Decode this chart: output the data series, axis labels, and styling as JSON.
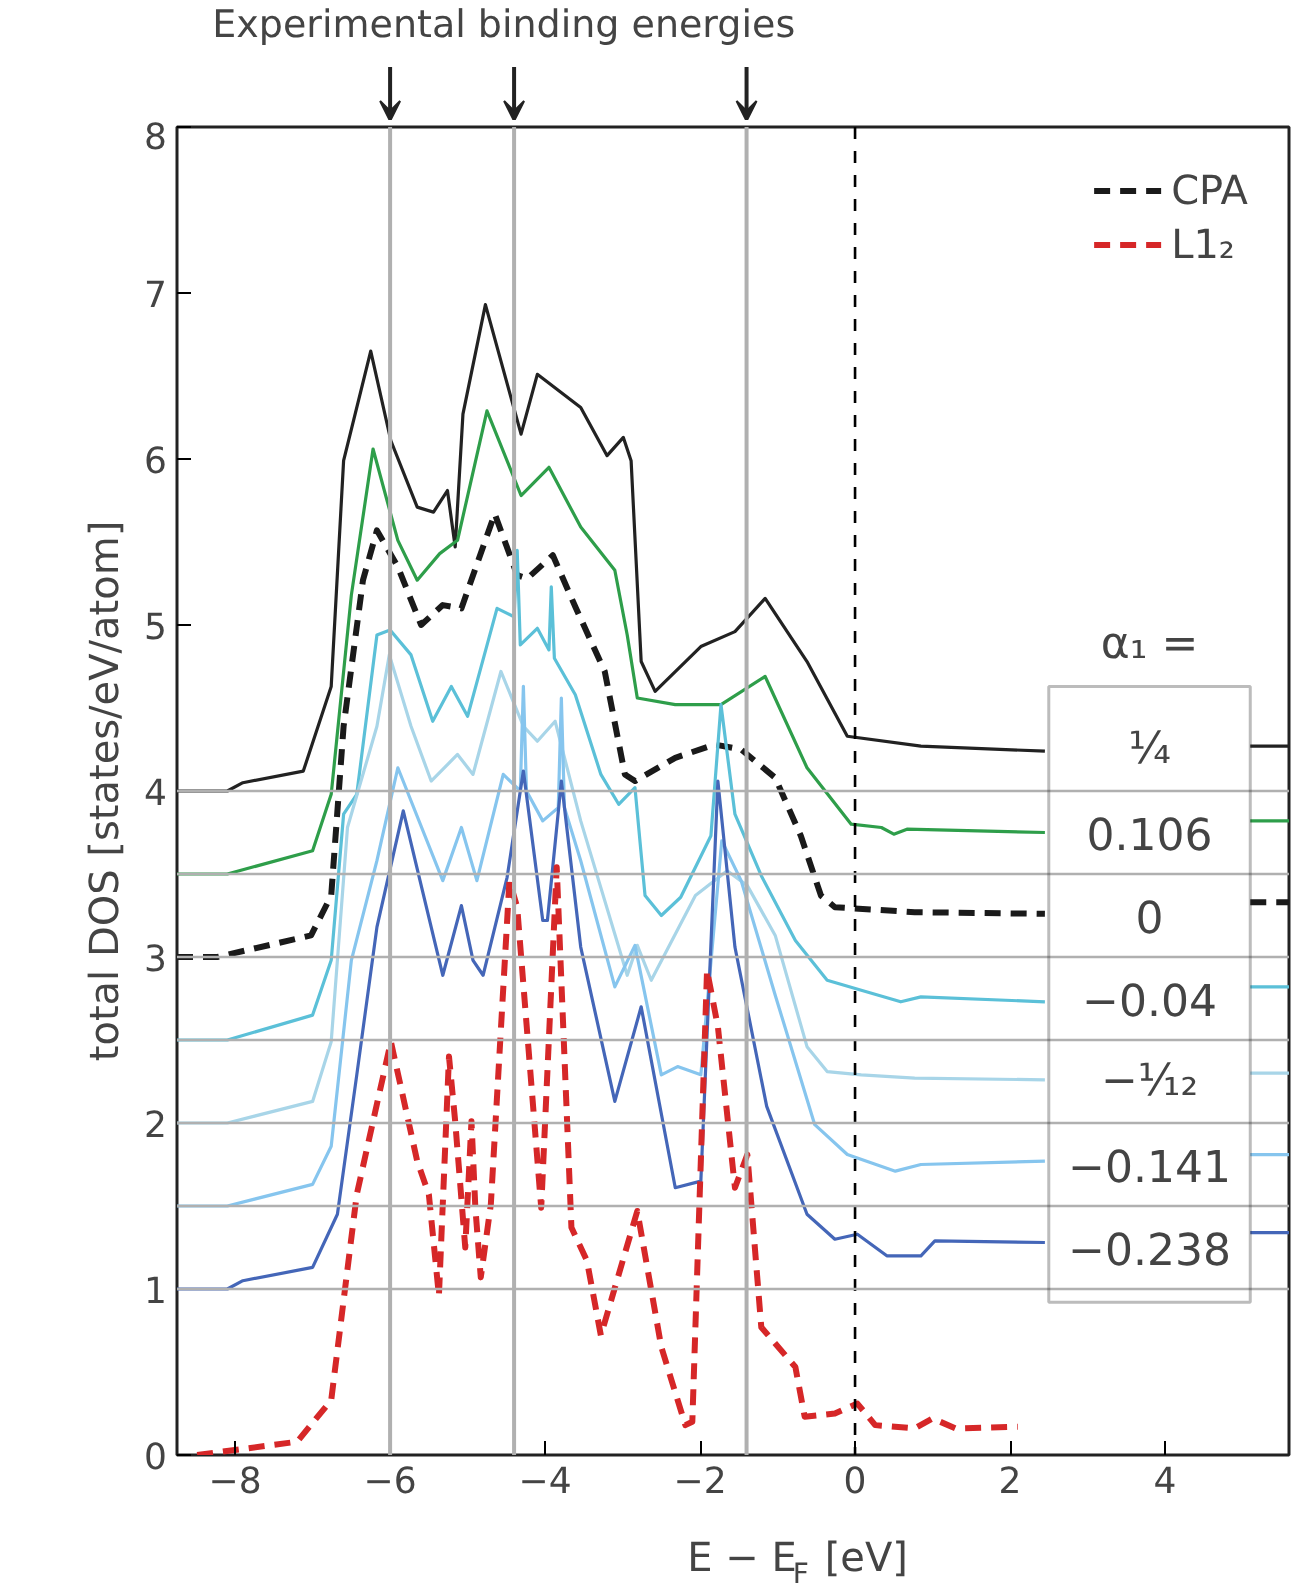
{
  "chart_data": {
    "type": "line",
    "title": "Experimental binding energies",
    "xlabel": "E − E$_{F}$ [eV]",
    "ylabel": "total DOS [states/eV/atom]",
    "xlim": [
      -8.75,
      5.6
    ],
    "ylim": [
      0,
      8
    ],
    "xticks": [
      -8,
      -6,
      -4,
      -2,
      0,
      2,
      4
    ],
    "yticks": [
      0,
      1,
      2,
      3,
      4,
      5,
      6,
      7,
      8
    ],
    "legend": "top right",
    "annotations": [
      "α₁ =",
      "¹⁄₄",
      "0.106",
      "0",
      "−0.04",
      "−¹⁄₁₂",
      "−0.141",
      "−0.238"
    ],
    "ref_lines": [
      {
        "axis": "x",
        "value": -6.0,
        "color": "#b0b0b0",
        "line_style": "solid"
      },
      {
        "axis": "x",
        "value": -4.4,
        "color": "#b0b0b0",
        "line_style": "solid"
      },
      {
        "axis": "x",
        "value": -1.4,
        "color": "#b0b0b0",
        "line_style": "solid"
      },
      {
        "axis": "x",
        "value": 0,
        "color": "#000000",
        "line_style": "dashed"
      },
      {
        "axis": "y",
        "value": 1,
        "color": "#b0b0b0"
      },
      {
        "axis": "y",
        "value": 1.5,
        "color": "#b0b0b0"
      },
      {
        "axis": "y",
        "value": 2,
        "color": "#b0b0b0"
      },
      {
        "axis": "y",
        "value": 2.5,
        "color": "#b0b0b0"
      },
      {
        "axis": "y",
        "value": 3,
        "color": "#b0b0b0"
      },
      {
        "axis": "y",
        "value": 3.5,
        "color": "#b0b0b0"
      },
      {
        "axis": "y",
        "value": 4,
        "color": "#b0b0b0"
      }
    ],
    "series": [
      {
        "color": "#222222",
        "x": [
          -8.75,
          -8.1,
          -7.9,
          -7.12,
          -6.76,
          -6.6,
          -6.25,
          -5.99,
          -5.65,
          -5.44,
          -5.26,
          -5.16,
          -5.06,
          -4.77,
          -4.31,
          -4.1,
          -3.54,
          -3.2,
          -2.99,
          -2.89,
          -2.76,
          -2.58,
          -1.99,
          -1.55,
          -1.16,
          -0.62,
          -0.1,
          0.85,
          2.45,
          2.5,
          5.1,
          5.6
        ],
        "values": [
          4.0,
          4.0,
          4.05,
          4.12,
          4.63,
          5.99,
          6.65,
          6.11,
          5.71,
          5.68,
          5.81,
          5.47,
          6.27,
          6.93,
          6.15,
          6.51,
          6.31,
          6.02,
          6.13,
          5.99,
          4.78,
          4.6,
          4.87,
          4.96,
          5.16,
          4.78,
          4.33,
          4.27,
          4.24,
          null,
          4.27,
          4.27
        ]
      },
      {
        "color": "#2e9e4a",
        "x": [
          -8.75,
          -8.1,
          -7.0,
          -6.76,
          -6.5,
          -6.22,
          -5.9,
          -5.65,
          -5.36,
          -5.13,
          -4.75,
          -4.31,
          -3.95,
          -3.54,
          -3.1,
          -2.94,
          -2.81,
          -2.32,
          -1.73,
          -1.16,
          -0.62,
          -0.05,
          0.34,
          0.5,
          0.67,
          2.45,
          2.5,
          5.1,
          5.6
        ],
        "values": [
          3.5,
          3.5,
          3.64,
          3.98,
          5.18,
          6.06,
          5.51,
          5.27,
          5.43,
          5.51,
          6.29,
          5.78,
          5.95,
          5.59,
          5.33,
          4.94,
          4.56,
          4.52,
          4.52,
          4.69,
          4.14,
          3.8,
          3.78,
          3.74,
          3.77,
          3.75,
          null,
          3.82,
          3.82
        ]
      },
      {
        "name": "CPA",
        "color": "#1a1a1a",
        "line_style": "dashed",
        "x": [
          -8.75,
          -8.23,
          -7.02,
          -6.76,
          -6.6,
          -6.35,
          -6.17,
          -5.9,
          -5.6,
          -5.32,
          -5.08,
          -4.65,
          -4.36,
          -4.23,
          -3.9,
          -3.61,
          -3.23,
          -2.97,
          -2.84,
          -2.32,
          -1.81,
          -1.47,
          -1.03,
          -0.7,
          -0.44,
          -0.26,
          0.77,
          2.45,
          2.5,
          5.1,
          5.6
        ],
        "values": [
          3.0,
          3.0,
          3.13,
          3.37,
          4.39,
          5.27,
          5.57,
          5.35,
          5.0,
          5.12,
          5.1,
          5.67,
          5.3,
          5.28,
          5.42,
          5.11,
          4.72,
          4.1,
          4.06,
          4.2,
          4.28,
          4.25,
          4.08,
          3.73,
          3.37,
          3.3,
          3.27,
          3.26,
          null,
          3.33,
          3.33
        ]
      },
      {
        "color": "#5bc0d8",
        "x": [
          -8.75,
          -8.1,
          -7.0,
          -6.76,
          -6.6,
          -6.43,
          -6.17,
          -6.0,
          -5.73,
          -5.45,
          -5.21,
          -5.0,
          -4.62,
          -4.4,
          -4.36,
          -4.32,
          -4.1,
          -3.95,
          -3.92,
          -3.88,
          -3.61,
          -3.28,
          -3.05,
          -2.84,
          -2.71,
          -2.5,
          -2.25,
          -1.86,
          -1.73,
          -1.55,
          -1.21,
          -0.77,
          -0.36,
          0.08,
          0.59,
          0.85,
          2.45,
          2.5,
          5.1,
          5.6
        ],
        "values": [
          2.5,
          2.5,
          2.65,
          2.98,
          3.86,
          3.98,
          4.94,
          4.97,
          4.82,
          4.42,
          4.63,
          4.45,
          5.1,
          5.05,
          5.45,
          4.88,
          4.98,
          4.85,
          5.23,
          4.8,
          4.58,
          4.1,
          3.92,
          4.02,
          3.37,
          3.25,
          3.36,
          3.73,
          4.52,
          3.86,
          3.49,
          3.1,
          2.86,
          2.8,
          2.73,
          2.76,
          2.73,
          null,
          2.82,
          2.82
        ]
      },
      {
        "color": "#a8d5e8",
        "x": [
          -8.75,
          -8.1,
          -7.0,
          -6.76,
          -6.55,
          -6.17,
          -6.01,
          -5.73,
          -5.47,
          -5.13,
          -4.93,
          -4.57,
          -4.28,
          -4.1,
          -3.87,
          -3.54,
          -2.94,
          -2.81,
          -2.63,
          -2.06,
          -1.65,
          -1.39,
          -1.03,
          -0.62,
          -0.36,
          0.08,
          0.77,
          2.45,
          2.5,
          5.1,
          5.6
        ],
        "values": [
          2.0,
          2.0,
          2.13,
          2.49,
          3.78,
          4.39,
          4.82,
          4.39,
          4.06,
          4.22,
          4.1,
          4.72,
          4.39,
          4.3,
          4.42,
          3.82,
          2.89,
          3.07,
          2.86,
          3.37,
          3.52,
          3.43,
          3.13,
          2.46,
          2.31,
          2.29,
          2.27,
          2.26,
          null,
          2.3,
          2.3
        ]
      },
      {
        "color": "#86c5ee",
        "x": [
          -8.75,
          -8.1,
          -7.0,
          -6.76,
          -6.5,
          -6.17,
          -5.9,
          -5.32,
          -5.08,
          -4.88,
          -4.54,
          -4.32,
          -4.28,
          -4.24,
          -4.03,
          -3.83,
          -3.79,
          -3.75,
          -3.54,
          -3.1,
          -2.84,
          -2.5,
          -2.29,
          -1.99,
          -1.72,
          -1.47,
          -1.03,
          -0.52,
          -0.1,
          0.52,
          0.85,
          2.45,
          2.5,
          5.1,
          5.6
        ],
        "values": [
          1.5,
          1.5,
          1.63,
          1.86,
          2.98,
          3.58,
          4.14,
          3.46,
          3.78,
          3.46,
          4.1,
          4.0,
          4.63,
          4.0,
          3.82,
          3.9,
          4.56,
          3.9,
          3.58,
          2.82,
          3.07,
          2.29,
          2.34,
          2.29,
          3.7,
          3.46,
          2.77,
          1.99,
          1.81,
          1.71,
          1.75,
          1.77,
          null,
          1.81,
          1.81
        ]
      },
      {
        "color": "#4466b8",
        "x": [
          -8.75,
          -8.1,
          -7.9,
          -7.0,
          -6.68,
          -6.43,
          -6.17,
          -5.83,
          -5.32,
          -5.08,
          -4.93,
          -4.8,
          -4.49,
          -4.28,
          -4.03,
          -3.97,
          -3.79,
          -3.54,
          -3.1,
          -2.76,
          -2.32,
          -1.99,
          -1.77,
          -1.55,
          -1.14,
          -0.62,
          -0.26,
          0.03,
          0.41,
          0.85,
          1.03,
          2.45,
          2.5,
          5.1,
          5.6
        ],
        "values": [
          1.0,
          1.0,
          1.05,
          1.13,
          1.45,
          2.29,
          3.18,
          3.88,
          2.89,
          3.31,
          2.98,
          2.89,
          3.48,
          4.12,
          3.22,
          3.22,
          4.06,
          3.06,
          2.13,
          2.7,
          1.61,
          1.65,
          4.06,
          3.06,
          2.1,
          1.45,
          1.3,
          1.33,
          1.2,
          1.2,
          1.29,
          1.28,
          null,
          1.34,
          1.34
        ]
      },
      {
        "name": "L1₂",
        "color": "#d62728",
        "line_style": "dashed",
        "x": [
          -8.49,
          -7.2,
          -6.76,
          -6.43,
          -6.22,
          -5.99,
          -5.65,
          -5.5,
          -5.37,
          -5.24,
          -5.16,
          -5.03,
          -4.95,
          -4.9,
          -4.83,
          -4.7,
          -4.46,
          -4.36,
          -4.05,
          -3.85,
          -3.66,
          -3.46,
          -3.28,
          -2.81,
          -2.5,
          -2.19,
          -2.1,
          -1.91,
          -1.77,
          -1.55,
          -1.39,
          -1.21,
          -0.77,
          -0.65,
          -0.26,
          0.03,
          0.26,
          0.77,
          1.0,
          1.3,
          2.1
        ],
        "values": [
          0.0,
          0.08,
          0.33,
          1.57,
          2.01,
          2.49,
          1.77,
          1.57,
          0.96,
          2.4,
          2.01,
          1.25,
          2.01,
          1.49,
          1.07,
          1.51,
          3.46,
          3.3,
          1.49,
          3.54,
          1.37,
          1.17,
          0.72,
          1.47,
          0.65,
          0.18,
          0.2,
          2.92,
          2.58,
          1.61,
          1.81,
          0.77,
          0.53,
          0.23,
          0.25,
          0.31,
          0.18,
          0.16,
          0.22,
          0.16,
          0.17
        ]
      }
    ]
  }
}
